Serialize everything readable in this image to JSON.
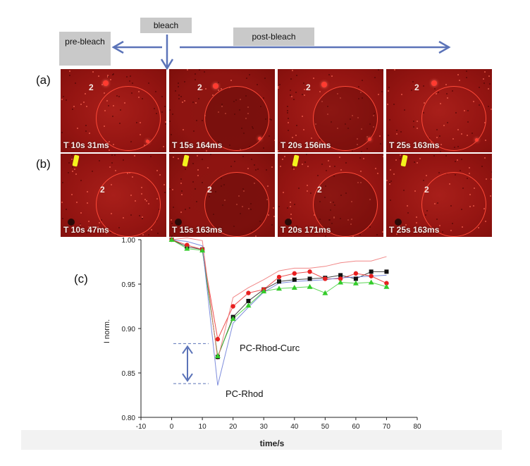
{
  "labels": {
    "pre_bleach": "pre-bleach",
    "bleach": "bleach",
    "post_bleach": "post-bleach",
    "panel_a": "(a)",
    "panel_b": "(b)",
    "panel_c": "(c)"
  },
  "row_a": {
    "region_number": "2",
    "timestamps": [
      "T 10s 31ms",
      "T 15s 164ms",
      "T 20s 156ms",
      "T 25s 163ms"
    ]
  },
  "row_b": {
    "region_number": "2",
    "timestamps": [
      "T 10s 47ms",
      "T 15s 163ms",
      "T 20s 171ms",
      "T 25s 163ms"
    ]
  },
  "colors": {
    "arrow": "#5b73b8",
    "series_black": "#111111",
    "series_red": "#e82020",
    "series_green": "#33cc2a",
    "pink_line": "#f07a7a",
    "blue_line": "#6f7fd8"
  },
  "chart_data": {
    "type": "line",
    "title": "",
    "xlabel": "time/s",
    "ylabel": "I norm.",
    "xlim": [
      -10,
      80
    ],
    "ylim": [
      0.8,
      1.0
    ],
    "xticks": [
      -10,
      0,
      10,
      20,
      30,
      40,
      50,
      60,
      70,
      80
    ],
    "xtick_labels": [
      "-10",
      "0",
      "10",
      "20",
      "30",
      "40",
      "50",
      "60",
      "70",
      "80"
    ],
    "yticks": [
      0.8,
      0.85,
      0.9,
      0.95,
      1.0
    ],
    "ytick_labels": [
      "0.80",
      "0.85",
      "0.90",
      "0.95",
      "1.00"
    ],
    "x": [
      0,
      5,
      10,
      15,
      20,
      25,
      30,
      35,
      40,
      45,
      50,
      55,
      60,
      65,
      70
    ],
    "series": [
      {
        "name": "black squares",
        "marker": "square",
        "color": "#111111",
        "values": [
          1.0,
          0.992,
          0.989,
          0.868,
          0.913,
          0.931,
          0.944,
          0.953,
          0.955,
          0.956,
          0.957,
          0.96,
          0.956,
          0.964,
          0.964
        ]
      },
      {
        "name": "red circles",
        "marker": "circle",
        "color": "#e82020",
        "values": [
          1.0,
          0.994,
          0.989,
          0.888,
          0.925,
          0.94,
          0.944,
          0.958,
          0.962,
          0.964,
          0.956,
          0.956,
          0.962,
          0.959,
          0.951
        ]
      },
      {
        "name": "green triangles",
        "marker": "triangle",
        "color": "#33cc2a",
        "values": [
          1.0,
          0.99,
          0.988,
          0.869,
          0.911,
          0.926,
          0.942,
          0.945,
          0.946,
          0.947,
          0.94,
          0.952,
          0.951,
          0.952,
          0.947
        ]
      },
      {
        "name": "pink line",
        "marker": "none",
        "color": "#f07a7a",
        "values": [
          1.0,
          1.002,
          0.999,
          0.865,
          0.935,
          0.946,
          0.955,
          0.965,
          0.968,
          0.968,
          0.97,
          0.974,
          0.976,
          0.976,
          0.981
        ]
      },
      {
        "name": "blue line",
        "marker": "none",
        "color": "#6f7fd8",
        "values": [
          1.0,
          0.998,
          0.993,
          0.836,
          0.906,
          0.924,
          0.941,
          0.951,
          0.953,
          0.954,
          0.955,
          0.957,
          0.958,
          0.959,
          0.96
        ]
      }
    ],
    "annotations": [
      {
        "text": "PC-Rhod-Curc"
      },
      {
        "text": "PC-Rhod"
      }
    ],
    "bracket": {
      "upper_value": 0.883,
      "lower_value": 0.838
    }
  }
}
